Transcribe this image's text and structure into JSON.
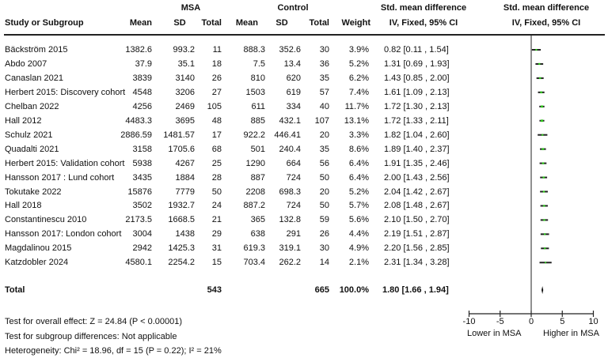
{
  "header": {
    "group1": "MSA",
    "group2": "Control",
    "study_col": "Study or Subgroup",
    "mean": "Mean",
    "sd": "SD",
    "total": "Total",
    "weight": "Weight",
    "effect_title": "Std. mean difference",
    "effect_method": "IV, Fixed, 95% CI",
    "plot_title": "Std. mean difference",
    "plot_method": "IV, Fixed, 95% CI"
  },
  "studies": [
    {
      "name": "Bäckström 2015",
      "msa_mean": "1382.6",
      "msa_sd": "993.2",
      "msa_total": "11",
      "ctl_mean": "888.3",
      "ctl_sd": "352.6",
      "ctl_total": "30",
      "weight": "3.9%",
      "ci": "0.82 [0.11 , 1.54]"
    },
    {
      "name": "Abdo 2007",
      "msa_mean": "37.9",
      "msa_sd": "35.1",
      "msa_total": "18",
      "ctl_mean": "7.5",
      "ctl_sd": "13.4",
      "ctl_total": "36",
      "weight": "5.2%",
      "ci": "1.31 [0.69 , 1.93]"
    },
    {
      "name": "Canaslan 2021",
      "msa_mean": "3839",
      "msa_sd": "3140",
      "msa_total": "26",
      "ctl_mean": "810",
      "ctl_sd": "620",
      "ctl_total": "35",
      "weight": "6.2%",
      "ci": "1.43 [0.85 , 2.00]"
    },
    {
      "name": "Herbert 2015: Discovery cohort",
      "msa_mean": "4548",
      "msa_sd": "3206",
      "msa_total": "27",
      "ctl_mean": "1503",
      "ctl_sd": "619",
      "ctl_total": "57",
      "weight": "7.4%",
      "ci": "1.61 [1.09 , 2.13]"
    },
    {
      "name": "Chelban 2022",
      "msa_mean": "4256",
      "msa_sd": "2469",
      "msa_total": "105",
      "ctl_mean": "611",
      "ctl_sd": "334",
      "ctl_total": "40",
      "weight": "11.7%",
      "ci": "1.72 [1.30 , 2.13]"
    },
    {
      "name": "Hall 2012",
      "msa_mean": "4483.3",
      "msa_sd": "3695",
      "msa_total": "48",
      "ctl_mean": "885",
      "ctl_sd": "432.1",
      "ctl_total": "107",
      "weight": "13.1%",
      "ci": "1.72 [1.33 , 2.11]"
    },
    {
      "name": "Schulz 2021",
      "msa_mean": "2886.59",
      "msa_sd": "1481.57",
      "msa_total": "17",
      "ctl_mean": "922.2",
      "ctl_sd": "446.41",
      "ctl_total": "20",
      "weight": "3.3%",
      "ci": "1.82 [1.04 , 2.60]"
    },
    {
      "name": "Quadalti 2021",
      "msa_mean": "3158",
      "msa_sd": "1705.6",
      "msa_total": "68",
      "ctl_mean": "501",
      "ctl_sd": "240.4",
      "ctl_total": "35",
      "weight": "8.6%",
      "ci": "1.89 [1.40 , 2.37]"
    },
    {
      "name": "Herbert 2015: Validation cohort",
      "msa_mean": "5938",
      "msa_sd": "4267",
      "msa_total": "25",
      "ctl_mean": "1290",
      "ctl_sd": "664",
      "ctl_total": "56",
      "weight": "6.4%",
      "ci": "1.91 [1.35 , 2.46]"
    },
    {
      "name": "Hansson 2017 : Lund cohort",
      "msa_mean": "3435",
      "msa_sd": "1884",
      "msa_total": "28",
      "ctl_mean": "887",
      "ctl_sd": "724",
      "ctl_total": "50",
      "weight": "6.4%",
      "ci": "2.00 [1.43 , 2.56]"
    },
    {
      "name": "Tokutake 2022",
      "msa_mean": "15876",
      "msa_sd": "7779",
      "msa_total": "50",
      "ctl_mean": "2208",
      "ctl_sd": "698.3",
      "ctl_total": "20",
      "weight": "5.2%",
      "ci": "2.04 [1.42 , 2.67]"
    },
    {
      "name": "Hall 2018",
      "msa_mean": "3502",
      "msa_sd": "1932.7",
      "msa_total": "24",
      "ctl_mean": "887.2",
      "ctl_sd": "724",
      "ctl_total": "50",
      "weight": "5.7%",
      "ci": "2.08 [1.48 , 2.67]"
    },
    {
      "name": "Constantinescu 2010",
      "msa_mean": "2173.5",
      "msa_sd": "1668.5",
      "msa_total": "21",
      "ctl_mean": "365",
      "ctl_sd": "132.8",
      "ctl_total": "59",
      "weight": "5.6%",
      "ci": "2.10 [1.50 , 2.70]"
    },
    {
      "name": "Hansson 2017: London cohort",
      "msa_mean": "3004",
      "msa_sd": "1438",
      "msa_total": "29",
      "ctl_mean": "638",
      "ctl_sd": "291",
      "ctl_total": "26",
      "weight": "4.4%",
      "ci": "2.19 [1.51 , 2.87]"
    },
    {
      "name": "Magdalinou 2015",
      "msa_mean": "2942",
      "msa_sd": "1425.3",
      "msa_total": "31",
      "ctl_mean": "619.3",
      "ctl_sd": "319.1",
      "ctl_total": "30",
      "weight": "4.9%",
      "ci": "2.20 [1.56 , 2.85]"
    },
    {
      "name": "Katzdobler 2024",
      "msa_mean": "4580.1",
      "msa_sd": "2254.2",
      "msa_total": "15",
      "ctl_mean": "703.4",
      "ctl_sd": "262.2",
      "ctl_total": "14",
      "weight": "2.1%",
      "ci": "2.31 [1.34 , 3.28]"
    }
  ],
  "total": {
    "label": "Total",
    "msa_total": "543",
    "ctl_total": "665",
    "weight": "100.0%",
    "ci": "1.80 [1.66 , 1.94]"
  },
  "footer": {
    "overall_effect": "Test for overall effect: Z = 24.84 (P < 0.00001)",
    "subgroup": "Test for subgroup differences: Not applicable",
    "heterogeneity": "Heterogeneity: Chi² = 18.96, df = 15 (P = 0.22); I² = 21%"
  },
  "axis": {
    "ticks": [
      "-10",
      "-5",
      "0",
      "5",
      "10"
    ],
    "left_label": "Lower in MSA",
    "right_label": "Higher in MSA"
  },
  "colors": {
    "point": "#2ecc1a",
    "line": "#222222"
  },
  "chart_data": {
    "type": "forest",
    "title": "Std. mean difference, IV, Fixed, 95% CI",
    "xlabel": "",
    "xlim": [
      -10,
      10
    ],
    "xticks": [
      -10,
      -5,
      0,
      5,
      10
    ],
    "left_label": "Lower in MSA",
    "right_label": "Higher in MSA",
    "categories": [
      "Bäckström 2015",
      "Abdo 2007",
      "Canaslan 2021",
      "Herbert 2015: Discovery cohort",
      "Chelban 2022",
      "Hall 2012",
      "Schulz 2021",
      "Quadalti 2021",
      "Herbert 2015: Validation cohort",
      "Hansson 2017 : Lund cohort",
      "Tokutake 2022",
      "Hall 2018",
      "Constantinescu 2010",
      "Hansson 2017: London cohort",
      "Magdalinou 2015",
      "Katzdobler 2024"
    ],
    "estimate": [
      0.82,
      1.31,
      1.43,
      1.61,
      1.72,
      1.72,
      1.82,
      1.89,
      1.91,
      2.0,
      2.04,
      2.08,
      2.1,
      2.19,
      2.2,
      2.31
    ],
    "ci_low": [
      0.11,
      0.69,
      0.85,
      1.09,
      1.3,
      1.33,
      1.04,
      1.4,
      1.35,
      1.43,
      1.42,
      1.48,
      1.5,
      1.51,
      1.56,
      1.34
    ],
    "ci_high": [
      1.54,
      1.93,
      2.0,
      2.13,
      2.13,
      2.11,
      2.6,
      2.37,
      2.46,
      2.56,
      2.67,
      2.67,
      2.7,
      2.87,
      2.85,
      3.28
    ],
    "weight_pct": [
      3.9,
      5.2,
      6.2,
      7.4,
      11.7,
      13.1,
      3.3,
      8.6,
      6.4,
      6.4,
      5.2,
      5.7,
      5.6,
      4.4,
      4.9,
      2.1
    ],
    "pooled": {
      "estimate": 1.8,
      "ci_low": 1.66,
      "ci_high": 1.94,
      "weight_pct": 100.0
    }
  }
}
